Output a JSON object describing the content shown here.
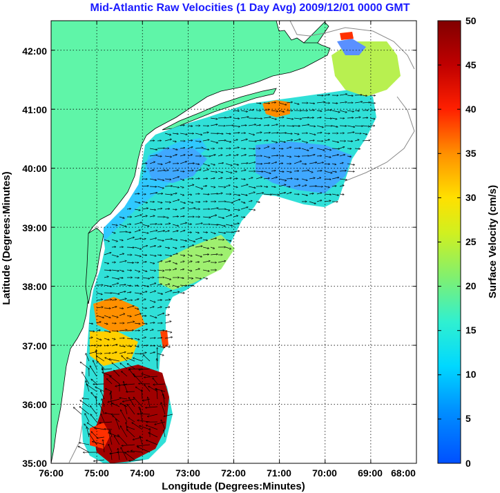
{
  "title": "Mid-Atlantic Raw Velocities (1 Day Avg) 2009/12/01 0000 GMT",
  "map": {
    "x_label": "Longitude (Degrees:Minutes)",
    "y_label": "Latitude (Degrees:Minutes)",
    "lon_ticks": [
      "76:00",
      "75:00",
      "74:00",
      "73:00",
      "72:00",
      "71:00",
      "70:00",
      "69:00",
      "68:00"
    ],
    "lat_ticks": [
      "42:00",
      "41:00",
      "40:00",
      "39:00",
      "38:00",
      "37:00",
      "36:00",
      "35:00"
    ],
    "lon_range": [
      -76,
      -68
    ],
    "lat_range": [
      35,
      42.5
    ],
    "grid": "dotted",
    "land_color": "#5ff5a8",
    "coast_color": "#000000",
    "bathymetry_color": "#888888"
  },
  "colorbar": {
    "label": "Surface Velocity (cm/s)",
    "ticks": [
      "0",
      "5",
      "10",
      "15",
      "20",
      "25",
      "30",
      "35",
      "40",
      "45",
      "50"
    ],
    "range": [
      0,
      50
    ],
    "colormap": "jet"
  }
}
